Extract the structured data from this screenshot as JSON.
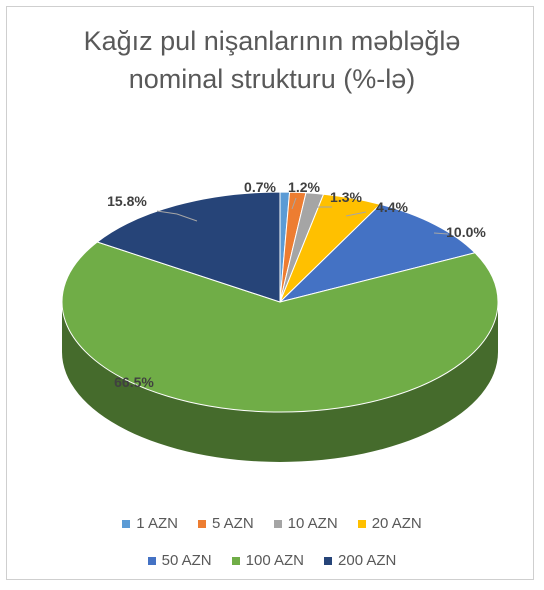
{
  "chart_data": {
    "type": "pie",
    "title_line1": "Kağız pul nişanlarının məbləğlə",
    "title_line2": "nominal strukturu (%-lə)",
    "categories": [
      "1 AZN",
      "5 AZN",
      "10 AZN",
      "20 AZN",
      "50 AZN",
      "100 AZN",
      "200 AZN"
    ],
    "values": [
      0.7,
      1.2,
      1.3,
      4.4,
      10.0,
      66.5,
      15.8
    ],
    "data_labels": [
      "0.7%",
      "1.2%",
      "1.3%",
      "4.4%",
      "10.0%",
      "66.5%",
      "15.8%"
    ],
    "colors": [
      "#5B9BD5",
      "#ED7D31",
      "#A5A5A5",
      "#FFC000",
      "#4472C4",
      "#70AD47",
      "#264478"
    ],
    "legend_position": "bottom"
  }
}
